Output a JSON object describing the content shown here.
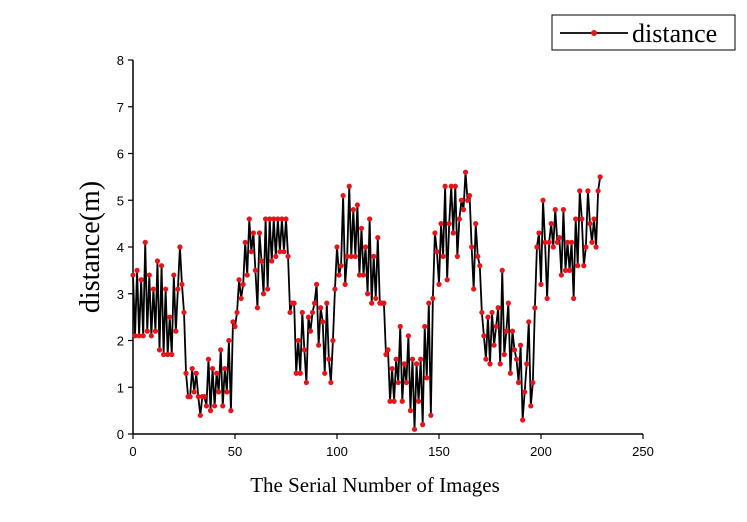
{
  "chart_data": {
    "type": "line",
    "xlabel": "The Serial Number of Images",
    "ylabel": "distance(m)",
    "xlim": [
      0,
      250
    ],
    "xticks": [
      0,
      50,
      100,
      150,
      200,
      250
    ],
    "ylim": [
      0,
      8
    ],
    "yticks": [
      0,
      1,
      2,
      3,
      4,
      5,
      6,
      7,
      8
    ],
    "legend": "upper right",
    "x": [
      0,
      1,
      2,
      3,
      4,
      5,
      6,
      7,
      8,
      9,
      10,
      11,
      12,
      13,
      14,
      15,
      16,
      17,
      18,
      19,
      20,
      21,
      22,
      23,
      24,
      25,
      26,
      27,
      28,
      29,
      30,
      31,
      32,
      33,
      34,
      35,
      36,
      37,
      38,
      39,
      40,
      41,
      42,
      43,
      44,
      45,
      46,
      47,
      48,
      49,
      50,
      51,
      52,
      53,
      54,
      55,
      56,
      57,
      58,
      59,
      60,
      61,
      62,
      63,
      64,
      65,
      66,
      67,
      68,
      69,
      70,
      71,
      72,
      73,
      74,
      75,
      76,
      77,
      78,
      79,
      80,
      81,
      82,
      83,
      84,
      85,
      86,
      87,
      88,
      89,
      90,
      91,
      92,
      93,
      94,
      95,
      96,
      97,
      98,
      99,
      100,
      101,
      102,
      103,
      104,
      105,
      106,
      107,
      108,
      109,
      110,
      111,
      112,
      113,
      114,
      115,
      116,
      117,
      118,
      119,
      120,
      121,
      122,
      123,
      124,
      125,
      126,
      127,
      128,
      129,
      130,
      131,
      132,
      133,
      134,
      135,
      136,
      137,
      138,
      139,
      140,
      141,
      142,
      143,
      144,
      145,
      146,
      147,
      148,
      149,
      150,
      151,
      152,
      153,
      154,
      155,
      156,
      157,
      158,
      159,
      160,
      161,
      162,
      163,
      164,
      165,
      166,
      167,
      168,
      169,
      170,
      171,
      172,
      173,
      174,
      175,
      176,
      177,
      178,
      179,
      180,
      181,
      182,
      183,
      184,
      185,
      186,
      187,
      188,
      189,
      190,
      191,
      192,
      193,
      194,
      195,
      196,
      197,
      198,
      199,
      200,
      201,
      202,
      203,
      204,
      205,
      206,
      207,
      208,
      209,
      210,
      211,
      212,
      213,
      214,
      215,
      216,
      217,
      218,
      219,
      220,
      221,
      222,
      223,
      224,
      225,
      226,
      227,
      228,
      229
    ],
    "series": [
      {
        "name": "distance",
        "color": "#000000",
        "marker_color": "#e8141a",
        "values": [
          3.4,
          2.1,
          3.5,
          2.1,
          3.3,
          2.1,
          4.1,
          2.2,
          3.4,
          2.1,
          3.1,
          2.2,
          3.7,
          1.8,
          3.6,
          1.7,
          3.1,
          1.7,
          2.5,
          1.7,
          3.4,
          2.2,
          3.1,
          4.0,
          3.2,
          2.6,
          1.3,
          0.8,
          0.8,
          1.4,
          0.9,
          1.3,
          0.8,
          0.4,
          0.8,
          0.8,
          0.6,
          1.6,
          0.5,
          1.4,
          0.6,
          1.3,
          0.9,
          1.8,
          0.6,
          1.4,
          0.9,
          2.0,
          0.5,
          2.4,
          2.3,
          2.6,
          3.3,
          2.9,
          3.2,
          4.1,
          3.4,
          4.6,
          3.9,
          4.3,
          3.5,
          2.7,
          4.3,
          3.7,
          3.0,
          4.6,
          3.1,
          4.6,
          3.7,
          4.6,
          3.8,
          4.6,
          3.9,
          4.6,
          3.9,
          4.6,
          3.8,
          2.6,
          2.8,
          2.8,
          1.3,
          2.0,
          1.3,
          2.6,
          1.8,
          1.1,
          2.5,
          2.2,
          2.6,
          2.8,
          3.2,
          1.9,
          2.7,
          2.4,
          1.3,
          2.8,
          1.6,
          1.1,
          2.0,
          3.1,
          4.0,
          3.4,
          3.6,
          5.1,
          3.2,
          3.8,
          5.3,
          3.8,
          4.8,
          3.8,
          4.9,
          3.4,
          4.4,
          3.4,
          4.0,
          3.0,
          4.6,
          2.8,
          3.8,
          2.9,
          4.2,
          2.8,
          2.8,
          2.8,
          1.7,
          1.8,
          0.7,
          1.4,
          0.7,
          1.6,
          1.1,
          2.3,
          0.7,
          1.5,
          1.1,
          2.1,
          0.5,
          1.6,
          0.1,
          1.5,
          0.7,
          1.6,
          0.2,
          2.3,
          1.2,
          2.8,
          0.4,
          2.9,
          4.3,
          3.9,
          3.2,
          4.5,
          3.8,
          5.3,
          3.3,
          4.5,
          5.3,
          4.3,
          5.3,
          3.8,
          4.6,
          5.0,
          4.8,
          5.6,
          5.0,
          5.1,
          4.0,
          3.1,
          4.5,
          3.8,
          3.6,
          2.6,
          2.1,
          1.6,
          2.5,
          1.5,
          2.6,
          1.9,
          2.3,
          2.7,
          1.5,
          3.5,
          1.7,
          2.2,
          2.8,
          1.3,
          2.2,
          1.8,
          1.6,
          1.1,
          1.9,
          0.3,
          0.9,
          1.5,
          2.4,
          0.6,
          1.1,
          2.7,
          4.0,
          4.3,
          3.2,
          5.0,
          4.1,
          2.9,
          4.1,
          4.5,
          4.0,
          4.8,
          4.1,
          4.2,
          3.4,
          4.8,
          3.5,
          4.1,
          3.5,
          4.1,
          2.9,
          4.6,
          3.6,
          5.2,
          4.6,
          3.6,
          4.0,
          5.2,
          4.5,
          4.1,
          4.6,
          4.0,
          5.2,
          5.5
        ]
      }
    ]
  }
}
